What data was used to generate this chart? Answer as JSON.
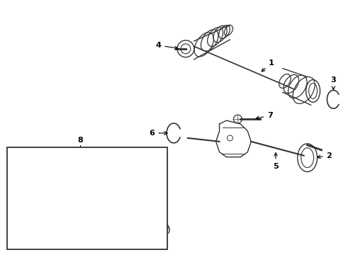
{
  "background_color": "#ffffff",
  "line_color": "#333333",
  "line_width": 1.0,
  "fig_width": 4.89,
  "fig_height": 3.6,
  "dpi": 100
}
